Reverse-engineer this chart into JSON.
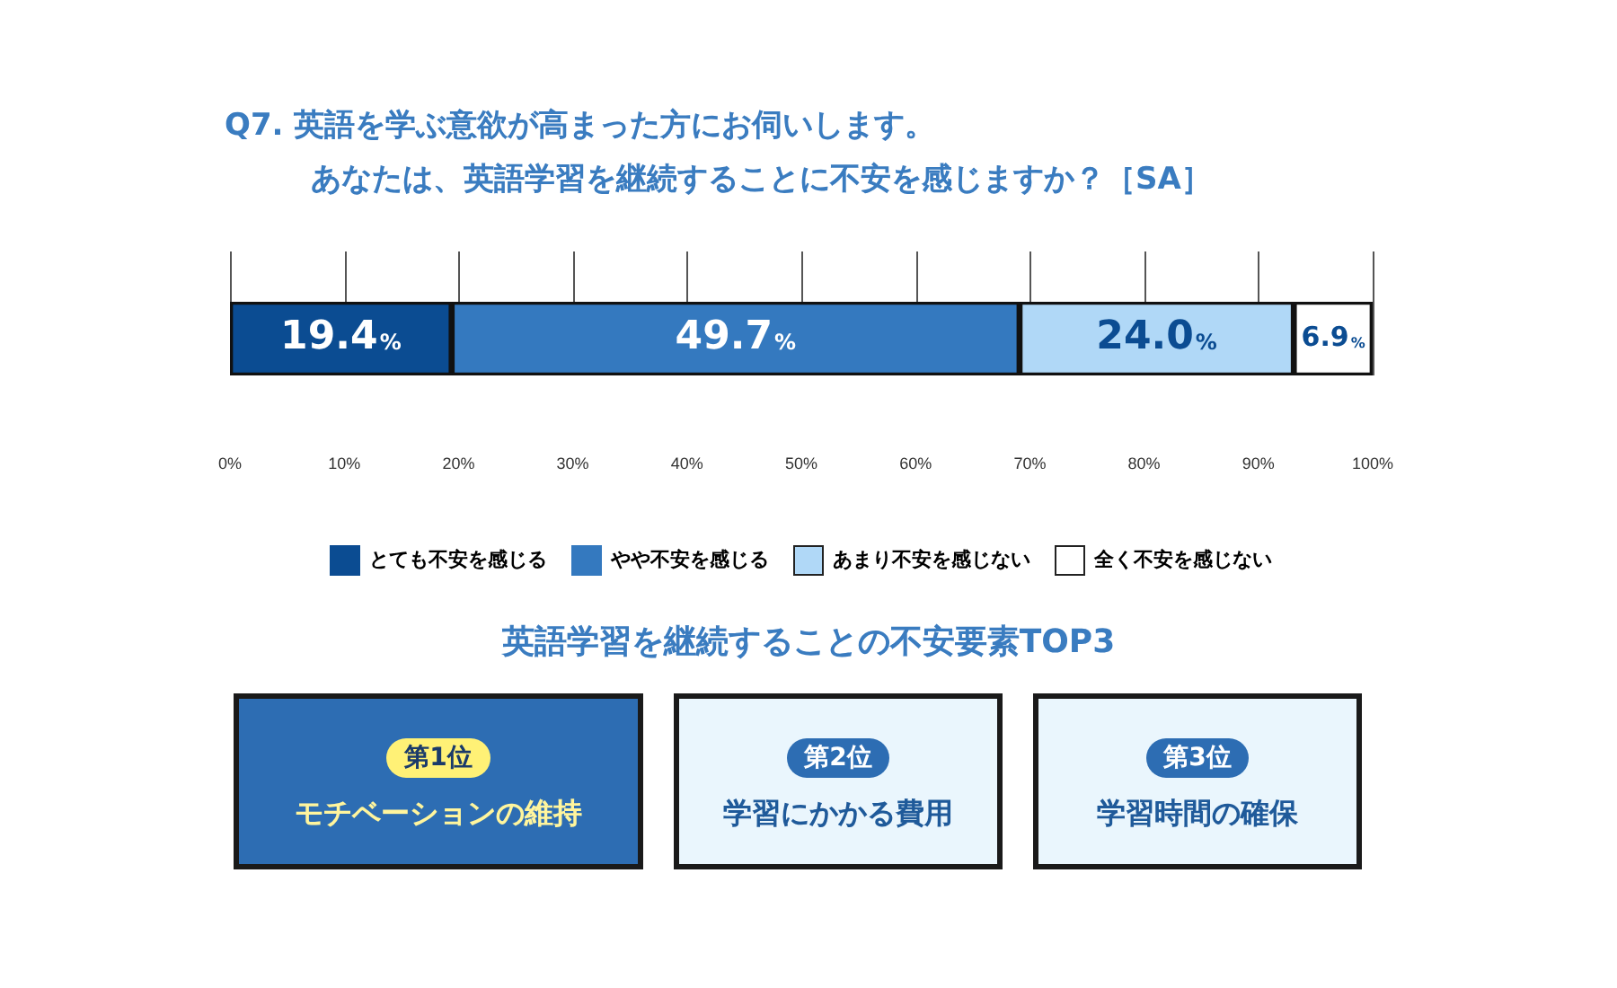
{
  "chart_data": [
    {
      "type": "bar",
      "orientation": "horizontal",
      "stacked": true,
      "title": "Q7. 英語を学ぶ意欲が高まった方にお伺いします。",
      "subtitle": "あなたは、英語学習を継続することに不安を感じますか？［SA］",
      "categories": [
        null
      ],
      "series": [
        {
          "name": "とても不安を感じる",
          "color": "#0b4c92",
          "values": [
            19.4
          ],
          "value_labels": [
            "19.4%"
          ]
        },
        {
          "name": "やや不安を感じる",
          "color": "#3479bf",
          "values": [
            49.7
          ],
          "value_labels": [
            "49.7%"
          ]
        },
        {
          "name": "あまり不安を感じない",
          "color": "#b0d8f7",
          "values": [
            24.0
          ],
          "value_labels": [
            "24.0%"
          ]
        },
        {
          "name": "全く不安を感じない",
          "color": "#ffffff",
          "values": [
            6.9
          ],
          "value_labels": [
            "6.9%"
          ]
        }
      ],
      "xlim": [
        0,
        100
      ],
      "xticks": [
        {
          "value": 0,
          "label": "0%"
        },
        {
          "value": 10,
          "label": "10%"
        },
        {
          "value": 20,
          "label": "20%"
        },
        {
          "value": 30,
          "label": "30%"
        },
        {
          "value": 40,
          "label": "40%"
        },
        {
          "value": 50,
          "label": "50%"
        },
        {
          "value": 60,
          "label": "60%"
        },
        {
          "value": 70,
          "label": "70%"
        },
        {
          "value": 80,
          "label": "80%"
        },
        {
          "value": 90,
          "label": "90%"
        },
        {
          "value": 100,
          "label": "100%"
        }
      ],
      "grid": "x",
      "legend": "bottom"
    },
    {
      "type": "other",
      "title": "英語学習を継続することの不安要素TOP3",
      "annotations": [
        "第1位",
        "モチベーションの維持",
        "第2位",
        "学習にかかる費用",
        "第3位",
        "学習時間の確保"
      ]
    }
  ]
}
